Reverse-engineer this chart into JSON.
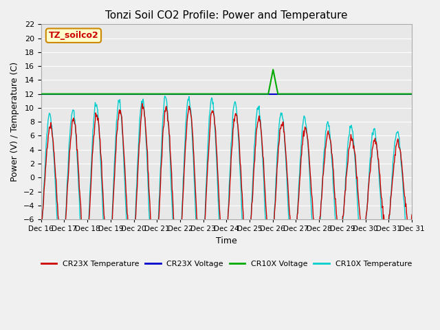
{
  "title": "Tonzi Soil CO2 Profile: Power and Temperature",
  "xlabel": "Time",
  "ylabel": "Power (V) / Temperature (C)",
  "ylim": [
    -6,
    22
  ],
  "yticks": [
    -6,
    -4,
    -2,
    0,
    2,
    4,
    6,
    8,
    10,
    12,
    14,
    16,
    18,
    20,
    22
  ],
  "xtick_labels": [
    "Dec 16",
    "Dec 17",
    "Dec 18",
    "Dec 19",
    "Dec 20",
    "Dec 21",
    "Dec 22",
    "Dec 23",
    "Dec 24",
    "Dec 25",
    "Dec 26",
    "Dec 27",
    "Dec 28",
    "Dec 29",
    "Dec 30",
    "Dec 31"
  ],
  "xtick_positions": [
    0,
    1,
    2,
    3,
    4,
    5,
    6,
    7,
    8,
    9,
    10,
    11,
    12,
    13,
    14,
    15
  ],
  "cr23x_voltage_value": 12.0,
  "cr10x_voltage_value": 12.0,
  "label_box_text": "TZ_soilco2",
  "label_box_facecolor": "#ffffcc",
  "label_box_edgecolor": "#cc8800",
  "cr23x_temp_color": "#cc0000",
  "cr23x_voltage_color": "#0000cc",
  "cr10x_voltage_color": "#00aa00",
  "cr10x_temp_color": "#00cccc",
  "fig_bg_color": "#f0f0f0",
  "plot_bg_color": "#e8e8e8",
  "grid_color": "#ffffff",
  "legend_labels": [
    "CR23X Temperature",
    "CR23X Voltage",
    "CR10X Voltage",
    "CR10X Temperature"
  ],
  "title_fontsize": 11,
  "n_days": 16
}
